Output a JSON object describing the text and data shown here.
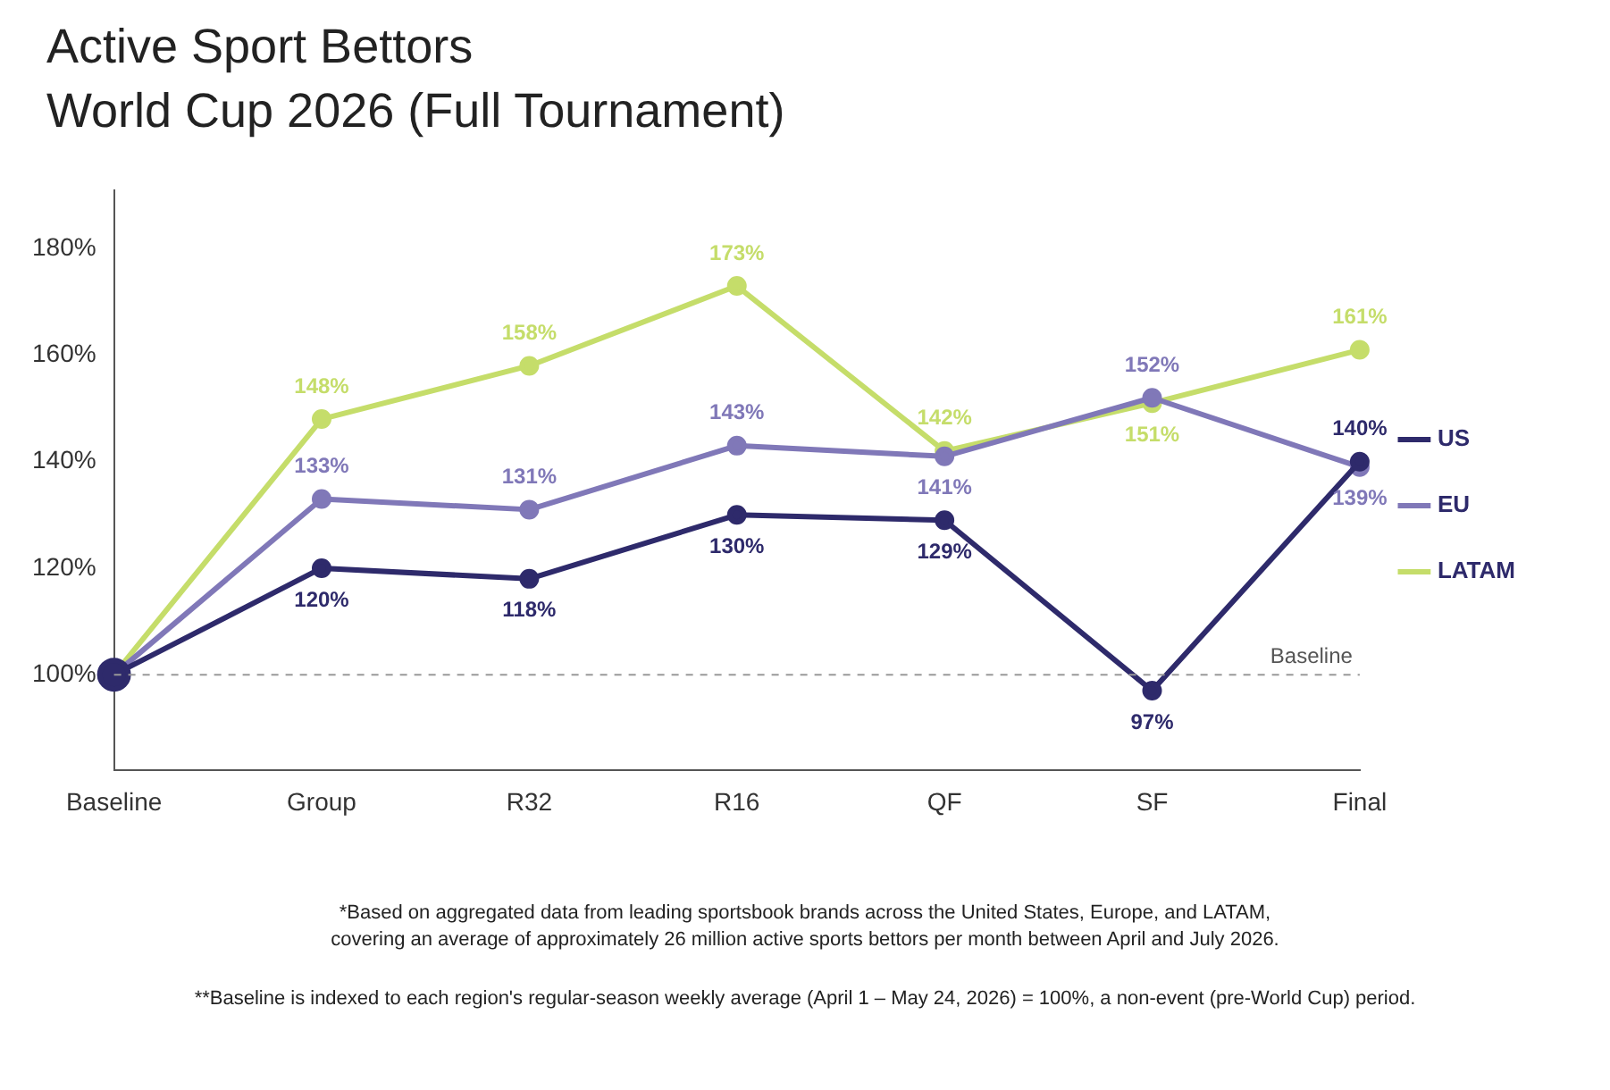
{
  "chart_data": {
    "type": "line",
    "title": "Active Sport Bettors\nWorld Cup 2026 (Full Tournament)",
    "categories": [
      "Baseline",
      "Group",
      "R32",
      "R16",
      "QF",
      "SF",
      "Final"
    ],
    "series": [
      {
        "name": "US",
        "color": "#2e2a6b",
        "values": [
          100,
          120,
          118,
          130,
          129,
          97,
          140
        ],
        "value_labels": [
          null,
          "120%",
          "118%",
          "130%",
          "129%",
          "97%",
          "140%"
        ]
      },
      {
        "name": "EU",
        "color": "#8078b8",
        "values": [
          100,
          133,
          131,
          143,
          141,
          152,
          139
        ],
        "value_labels": [
          null,
          "133%",
          "131%",
          "143%",
          "141%",
          "152%",
          "139%"
        ]
      },
      {
        "name": "LATAM",
        "color": "#c5dd6a",
        "values": [
          100,
          148,
          158,
          173,
          142,
          151,
          161
        ],
        "value_labels": [
          null,
          "148%",
          "158%",
          "173%",
          "142%",
          "151%",
          "161%"
        ]
      }
    ],
    "ylim": [
      82,
      191
    ],
    "yticks": [
      {
        "value": 100,
        "label": "100%"
      },
      {
        "value": 120,
        "label": "120%"
      },
      {
        "value": 140,
        "label": "140%"
      },
      {
        "value": 160,
        "label": "160%"
      },
      {
        "value": 180,
        "label": "180%"
      }
    ],
    "grid": false,
    "legend": "right",
    "marker": "circle",
    "line_style": "solid",
    "ref_lines": [
      {
        "axis": "y",
        "value": 100,
        "label": "Baseline",
        "color": "#999999",
        "line_style": "dashed"
      }
    ],
    "annotations": [
      "*Based on aggregated data from leading sportsbook brands across the United States, Europe, and LATAM,\ncovering an average of approximately 26 million active sports bettors per month between April and July 2026.",
      "**Baseline is indexed to each region's regular-season weekly average (April 1 – May 24, 2026) = 100%, a non-event (pre-World Cup) period."
    ]
  }
}
